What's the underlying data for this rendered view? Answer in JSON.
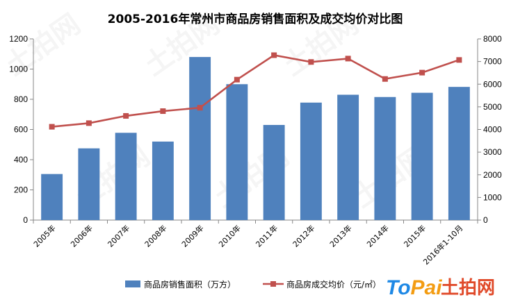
{
  "chart_data": {
    "type": "bar",
    "title": "2005-2016年常州市商品房销售面积及成交均价对比图",
    "categories": [
      "2005年",
      "2006年",
      "2007年",
      "2008年",
      "2009年",
      "2010年",
      "2011年",
      "2012年",
      "2013年",
      "2014年",
      "2015年",
      "2016年1-10月"
    ],
    "series": [
      {
        "name": "商品房销售面积（万方）",
        "type": "bar",
        "axis": "left",
        "color": "#4F81BD",
        "values": [
          305,
          475,
          578,
          520,
          1080,
          900,
          630,
          778,
          830,
          815,
          843,
          882
        ]
      },
      {
        "name": "商品房成交均价（元/㎡）",
        "type": "line",
        "axis": "right",
        "color": "#C0504D",
        "values": [
          4120,
          4280,
          4600,
          4810,
          4960,
          6200,
          7280,
          6980,
          7130,
          6230,
          6510,
          7070
        ]
      }
    ],
    "y_left": {
      "min": 0,
      "max": 1200,
      "ticks": [
        0,
        200,
        400,
        600,
        800,
        1000,
        1200
      ]
    },
    "y_right": {
      "min": 0,
      "max": 8000,
      "ticks": [
        0,
        1000,
        2000,
        3000,
        4000,
        5000,
        6000,
        7000,
        8000
      ]
    },
    "grid": false,
    "legend": "bottom"
  },
  "watermark": {
    "logo_latin": "ToPai",
    "logo_cn": "土拍网",
    "colors": {
      "to": "#1E88E5",
      "pai": "#F39C12",
      "cn": "#E04A2A"
    }
  }
}
